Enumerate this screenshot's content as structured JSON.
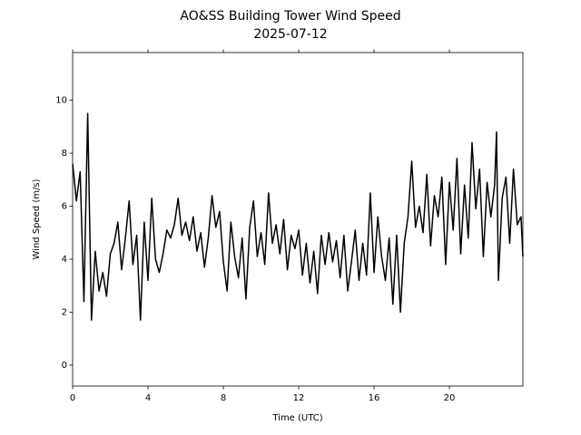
{
  "chart_data": {
    "type": "line",
    "title": "AO&SS Building Tower Wind Speed",
    "subtitle": "2025-07-12",
    "x_label": "Time (UTC)",
    "y_label": "Wind Speed (m/s)",
    "xlim": [
      0,
      23.9
    ],
    "ylim": [
      -0.79,
      11.8
    ],
    "xticks": [
      0,
      4,
      8,
      12,
      16,
      20
    ],
    "yticks": [
      0,
      2,
      4,
      6,
      8,
      10
    ],
    "grid": false,
    "series": [
      {
        "color": "#000000",
        "x": [
          0.0,
          0.2,
          0.4,
          0.6,
          0.8,
          1.0,
          1.2,
          1.4,
          1.6,
          1.8,
          2.0,
          2.2,
          2.4,
          2.6,
          2.8,
          3.0,
          3.2,
          3.4,
          3.6,
          3.8,
          4.0,
          4.2,
          4.4,
          4.6,
          4.8,
          5.0,
          5.2,
          5.4,
          5.6,
          5.8,
          6.0,
          6.2,
          6.4,
          6.6,
          6.8,
          7.0,
          7.2,
          7.4,
          7.6,
          7.8,
          8.0,
          8.2,
          8.4,
          8.6,
          8.8,
          9.0,
          9.2,
          9.4,
          9.6,
          9.8,
          10.0,
          10.2,
          10.4,
          10.6,
          10.8,
          11.0,
          11.2,
          11.4,
          11.6,
          11.8,
          12.0,
          12.2,
          12.4,
          12.6,
          12.8,
          13.0,
          13.2,
          13.4,
          13.6,
          13.8,
          14.0,
          14.2,
          14.4,
          14.6,
          14.8,
          15.0,
          15.2,
          15.4,
          15.6,
          15.8,
          16.0,
          16.2,
          16.4,
          16.6,
          16.8,
          17.0,
          17.2,
          17.4,
          17.6,
          17.8,
          18.0,
          18.2,
          18.4,
          18.6,
          18.8,
          19.0,
          19.2,
          19.4,
          19.6,
          19.8,
          20.0,
          20.2,
          20.4,
          20.6,
          20.8,
          21.0,
          21.2,
          21.4,
          21.6,
          21.8,
          22.0,
          22.2,
          22.4,
          22.5,
          22.6,
          22.8,
          23.0,
          23.2,
          23.4,
          23.6,
          23.8,
          23.9
        ],
        "values": [
          7.6,
          6.2,
          7.3,
          2.4,
          9.5,
          1.7,
          4.3,
          2.8,
          3.5,
          2.6,
          4.2,
          4.6,
          5.4,
          3.6,
          4.8,
          6.2,
          3.8,
          4.9,
          1.7,
          5.4,
          3.2,
          6.3,
          4.0,
          3.5,
          4.2,
          5.1,
          4.8,
          5.3,
          6.3,
          4.9,
          5.4,
          4.7,
          5.6,
          4.3,
          5.0,
          3.7,
          4.8,
          6.4,
          5.2,
          5.8,
          3.9,
          2.8,
          5.4,
          4.1,
          3.3,
          4.8,
          2.5,
          5.2,
          6.2,
          4.1,
          5.0,
          3.8,
          6.5,
          4.6,
          5.3,
          4.2,
          5.5,
          3.6,
          4.9,
          4.4,
          5.1,
          3.4,
          4.6,
          3.1,
          4.3,
          2.7,
          4.9,
          3.8,
          5.0,
          3.9,
          4.7,
          3.3,
          4.9,
          2.8,
          3.9,
          5.1,
          3.2,
          4.6,
          3.4,
          6.5,
          3.5,
          5.6,
          4.1,
          3.2,
          4.8,
          2.3,
          4.9,
          2.0,
          4.6,
          5.6,
          7.7,
          5.2,
          6.0,
          5.0,
          7.2,
          4.5,
          6.4,
          5.6,
          7.1,
          3.8,
          6.9,
          5.1,
          7.8,
          4.2,
          6.8,
          4.8,
          8.4,
          5.9,
          7.4,
          4.1,
          6.9,
          5.6,
          6.8,
          8.8,
          3.2,
          6.3,
          7.1,
          4.6,
          7.4,
          5.3,
          5.6,
          4.1
        ]
      }
    ]
  }
}
